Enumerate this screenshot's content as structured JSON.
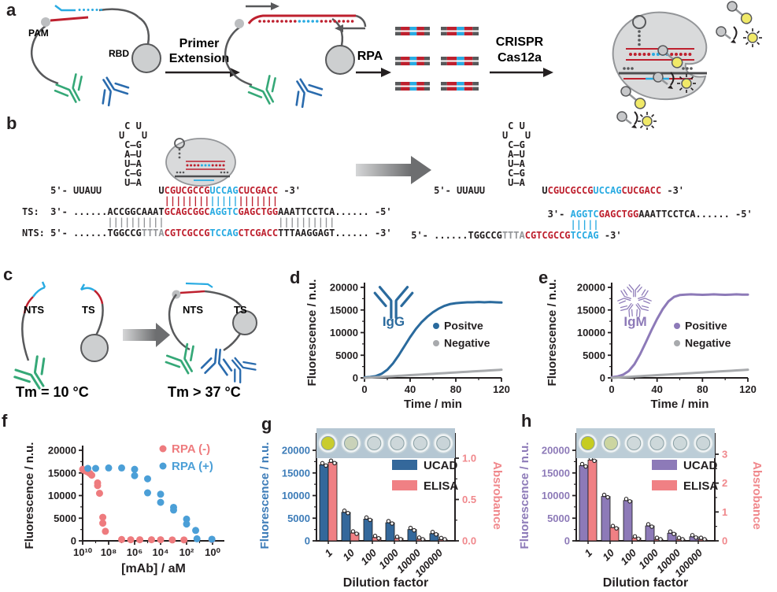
{
  "labels": {
    "a": "a",
    "b": "b",
    "c": "c",
    "d": "d",
    "e": "e",
    "f": "f",
    "g": "g",
    "h": "h"
  },
  "panel_a": {
    "pam": "PAM",
    "rbd": "RBD",
    "step1_line1": "Primer",
    "step1_line2": "Extension",
    "step2": "RPA",
    "step3_line1": "CRISPR",
    "step3_line2": "Cas12a"
  },
  "panel_b": {
    "left": {
      "hairpin": [
        "C U",
        "U   U",
        "C—G",
        "A—U",
        "U—A",
        "C—G",
        "U—A"
      ],
      "lines": {
        "crrna": [
          [
            "     5'- UUAUU          U",
            "k"
          ],
          [
            "CGUCGCCG",
            "r"
          ],
          [
            "UCCAG",
            "b"
          ],
          [
            "CUCGACC",
            "r"
          ],
          [
            " -3'",
            "k"
          ]
        ],
        "pair1": [
          [
            "                         ",
            "k"
          ],
          [
            "||||||||",
            "r"
          ],
          [
            "|||||",
            "b"
          ],
          [
            "|||||||",
            "r"
          ]
        ],
        "ts": [
          [
            "TS:  3'- ......ACCGGCAAAT",
            "k"
          ],
          [
            "GCAGCGGC",
            "r"
          ],
          [
            "AGGTC",
            "b"
          ],
          [
            "GAGCTGG",
            "r"
          ],
          [
            "AAATTCCTCA...... -5'",
            "k"
          ]
        ],
        "pair2": [
          [
            "               ",
            "k"
          ],
          [
            "||||||||||",
            "g"
          ],
          [
            "                    ",
            "k"
          ],
          [
            "||||||||||",
            "g"
          ]
        ],
        "nts": [
          [
            "NTS: 5'- ......TGGCCG",
            "k"
          ],
          [
            "TTTA",
            "g"
          ],
          [
            "CGTCGCCG",
            "r"
          ],
          [
            "TCCAG",
            "b"
          ],
          [
            "CTCGACC",
            "r"
          ],
          [
            "TTTAAGGAGT...... -3'",
            "k"
          ]
        ]
      }
    },
    "right": {
      "hairpin": [
        "C U",
        "U   U",
        "C—G",
        "A—U",
        "U—A",
        "C—G",
        "U—A"
      ],
      "lines": {
        "crrna": [
          [
            "     5'- UUAUU          U",
            "k"
          ],
          [
            "CGUCGCCG",
            "r"
          ],
          [
            "UCCAG",
            "b"
          ],
          [
            "CUCGACC",
            "r"
          ],
          [
            " -3'",
            "k"
          ]
        ],
        "ts": [
          [
            "                         3'- ",
            "k"
          ],
          [
            "AGGTC",
            "b"
          ],
          [
            "GAGCTGG",
            "r"
          ],
          [
            "AAATTCCTCA...... -5'",
            "k"
          ]
        ],
        "pair": [
          [
            "                             ",
            "k"
          ],
          [
            "|||||",
            "b"
          ]
        ],
        "nts": [
          [
            " 5'- ......TGGCCG",
            "k"
          ],
          [
            "TTTA",
            "g"
          ],
          [
            "CGTCGCCG",
            "r"
          ],
          [
            "TCCAG",
            "b"
          ],
          [
            " -3'",
            "k"
          ]
        ]
      }
    }
  },
  "panel_c": {
    "nts": "NTS",
    "ts": "TS",
    "tm_low": "Tm = 10 °C",
    "tm_high": "Tm > 37 °C"
  },
  "chart_data": [
    {
      "panel": "d",
      "type": "line",
      "icon": "IgG",
      "icon_label": "IgG",
      "icon_color": "#2a6a9d",
      "xlabel": "Time / min",
      "ylabel": "Fluorescence / n.u.",
      "xlim": [
        0,
        120
      ],
      "ylim": [
        0,
        20000
      ],
      "xticks": [
        0,
        40,
        80,
        120
      ],
      "yticks": [
        0,
        5000,
        10000,
        15000,
        20000
      ],
      "legend_pos": "right",
      "series": [
        {
          "name": "Positve",
          "color": "#2a6a9d",
          "x": [
            0,
            5,
            10,
            15,
            20,
            25,
            30,
            35,
            40,
            45,
            50,
            55,
            60,
            65,
            70,
            75,
            80,
            85,
            90,
            95,
            100,
            105,
            110,
            115,
            120
          ],
          "y": [
            100,
            200,
            400,
            900,
            1800,
            3200,
            5000,
            7000,
            9000,
            10800,
            12300,
            13500,
            14500,
            15300,
            15900,
            16300,
            16500,
            16600,
            16700,
            16700,
            16750,
            16700,
            16750,
            16700,
            16650
          ]
        },
        {
          "name": "Negative",
          "color": "#a8aaad",
          "x": [
            0,
            5,
            10,
            15,
            20,
            25,
            30,
            35,
            40,
            45,
            50,
            55,
            60,
            65,
            70,
            75,
            80,
            85,
            90,
            95,
            100,
            105,
            110,
            115,
            120
          ],
          "y": [
            0,
            75,
            150,
            225,
            300,
            375,
            450,
            525,
            600,
            675,
            750,
            825,
            900,
            975,
            1050,
            1125,
            1200,
            1275,
            1350,
            1425,
            1500,
            1575,
            1650,
            1725,
            1800
          ]
        }
      ]
    },
    {
      "panel": "e",
      "type": "line",
      "icon": "IgM",
      "icon_label": "IgM",
      "icon_color": "#8d7ab8",
      "xlabel": "Time / min",
      "ylabel": "Fluorescence / n.u.",
      "xlim": [
        0,
        120
      ],
      "ylim": [
        0,
        20000
      ],
      "xticks": [
        0,
        40,
        80,
        120
      ],
      "yticks": [
        0,
        5000,
        10000,
        15000,
        20000
      ],
      "legend_pos": "right",
      "series": [
        {
          "name": "Positive",
          "color": "#8d7ab8",
          "x": [
            0,
            5,
            10,
            15,
            20,
            25,
            30,
            35,
            40,
            45,
            50,
            55,
            60,
            65,
            70,
            75,
            80,
            85,
            90,
            95,
            100,
            105,
            110,
            115,
            120
          ],
          "y": [
            150,
            300,
            700,
            1500,
            3000,
            5200,
            7800,
            10500,
            13000,
            15200,
            16900,
            17900,
            18300,
            18400,
            18450,
            18400,
            18350,
            18400,
            18450,
            18400,
            18350,
            18400,
            18450,
            18400,
            18400
          ]
        },
        {
          "name": "Negative",
          "color": "#a8aaad",
          "x": [
            0,
            5,
            10,
            15,
            20,
            25,
            30,
            35,
            40,
            45,
            50,
            55,
            60,
            65,
            70,
            75,
            80,
            85,
            90,
            95,
            100,
            105,
            110,
            115,
            120
          ],
          "y": [
            0,
            75,
            150,
            225,
            300,
            375,
            450,
            525,
            600,
            675,
            750,
            825,
            900,
            975,
            1050,
            1125,
            1200,
            1275,
            1350,
            1425,
            1500,
            1575,
            1650,
            1725,
            1800
          ]
        }
      ]
    },
    {
      "panel": "f",
      "type": "scatter",
      "xlabel": "[mAb] / aM",
      "ylabel": "Fluorescence / n.u.",
      "ylim": [
        0,
        20000
      ],
      "yticks": [
        0,
        5000,
        10000,
        15000,
        20000
      ],
      "xtick_labels": [
        "10¹⁰",
        "10⁸",
        "10⁶",
        "10⁴",
        "10²",
        "10⁰"
      ],
      "xtick_exps": [
        10,
        8,
        6,
        4,
        2,
        0
      ],
      "series": [
        {
          "name": "RPA (-)",
          "color": "#ee7b7e",
          "points": [
            [
              10,
              15800
            ],
            [
              9.9,
              15600
            ],
            [
              9.75,
              15400
            ],
            [
              9.6,
              15200
            ],
            [
              9.45,
              14900
            ],
            [
              9.3,
              14500
            ],
            [
              8.85,
              12800
            ],
            [
              8.85,
              12200
            ],
            [
              8.7,
              10500
            ],
            [
              8.45,
              5200
            ],
            [
              8.45,
              3900
            ],
            [
              8.25,
              2100
            ],
            [
              7.0,
              300
            ],
            [
              6.3,
              250
            ],
            [
              5.6,
              250
            ],
            [
              4.7,
              250
            ],
            [
              4.0,
              250
            ],
            [
              3.1,
              200
            ],
            [
              2.2,
              200
            ],
            [
              0.05,
              300
            ]
          ]
        },
        {
          "name": "RPA (+)",
          "color": "#4b9fd7",
          "points": [
            [
              9.6,
              16000
            ],
            [
              9.0,
              16000
            ],
            [
              8.0,
              16100
            ],
            [
              7.0,
              16100
            ],
            [
              6.0,
              15800
            ],
            [
              6.0,
              14400
            ],
            [
              5.0,
              13700
            ],
            [
              5.0,
              10600
            ],
            [
              4.0,
              10300
            ],
            [
              4.0,
              8500
            ],
            [
              3.0,
              7400
            ],
            [
              3.0,
              6800
            ],
            [
              2.0,
              4800
            ],
            [
              2.0,
              3700
            ],
            [
              1.3,
              2300
            ],
            [
              1.2,
              450
            ],
            [
              0.05,
              350
            ]
          ]
        }
      ]
    },
    {
      "panel": "g",
      "type": "bar-dual",
      "xlabel": "Dilution factor",
      "ylabel_left": "Fluorescence / n.u.",
      "ylabel_right": "Absrobance",
      "left_label_color": "#3d7cb8",
      "right_label_color": "#f0888c",
      "categories": [
        "1",
        "10",
        "100",
        "1000",
        "10000",
        "100000"
      ],
      "left_ticks": [
        0,
        5000,
        10000,
        15000,
        20000
      ],
      "left_lim": 20000,
      "right_tick_labels": [
        "0.0",
        "0.5",
        "1.0"
      ],
      "right_tick_vals": [
        0,
        0.5,
        1
      ],
      "right_lim": 1,
      "series": [
        {
          "name": "UCAD",
          "color": "#34689b",
          "axis": "left",
          "values": [
            16800,
            6300,
            4800,
            4000,
            2500,
            1600
          ]
        },
        {
          "name": "ELISA",
          "color": "#f08084",
          "axis": "right",
          "values": [
            0.95,
            0.095,
            0.04,
            0.03,
            0.02,
            0.015
          ]
        }
      ],
      "wells": {
        "bg": "#b5c7d3",
        "colors": [
          "#c9cc2d",
          "#c9d2b9",
          "#ccd6d8",
          "#cdd7da",
          "#cdd7da",
          "#c9d4d8"
        ]
      }
    },
    {
      "panel": "h",
      "type": "bar-dual",
      "xlabel": "Dilution factor",
      "ylabel_left": "Fluorescence / n.u.",
      "ylabel_right": "Absrobance",
      "left_label_color": "#8d7ab8",
      "right_label_color": "#f0888c",
      "categories": [
        "1",
        "10",
        "100",
        "1000",
        "10000",
        "100000"
      ],
      "left_ticks": [
        0,
        5000,
        10000,
        15000,
        20000
      ],
      "left_lim": 20000,
      "right_tick_labels": [
        "0",
        "1",
        "2",
        "3"
      ],
      "right_tick_vals": [
        0,
        1,
        2,
        3
      ],
      "right_lim": 3,
      "series": [
        {
          "name": "UCAD",
          "color": "#8d7ab8",
          "axis": "left",
          "values": [
            16600,
            9800,
            8900,
            3300,
            1700,
            900
          ]
        },
        {
          "name": "ELISA",
          "color": "#f08084",
          "axis": "right",
          "values": [
            2.8,
            0.46,
            0.1,
            0.05,
            0.05,
            0.05
          ]
        }
      ],
      "wells": {
        "bg": "#bccdd7",
        "colors": [
          "#c6cc21",
          "#ccd5a0",
          "#cfd9db",
          "#cdd8da",
          "#cdd8da",
          "#cbd6d9"
        ]
      }
    }
  ]
}
